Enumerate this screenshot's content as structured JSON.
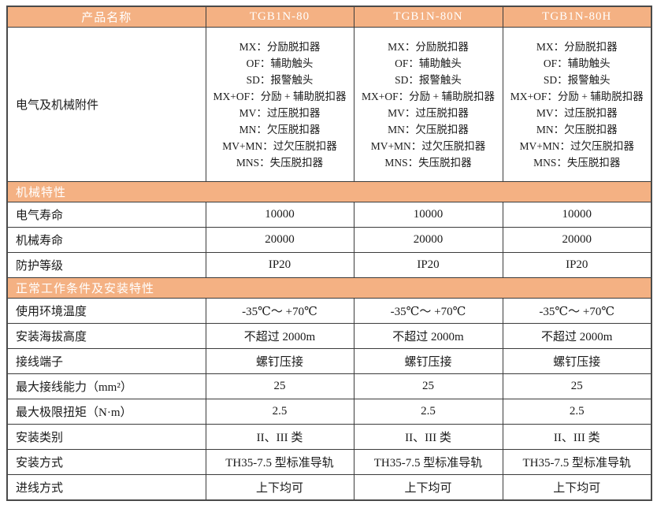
{
  "colors": {
    "header_bg": "#F4B183",
    "header_text": "#FFFFFF",
    "border": "#3B3B3B",
    "outer_border": "#4A4A4A",
    "body_text": "#1A1A1A"
  },
  "table": {
    "header": {
      "product_name_label": "产品名称",
      "models": [
        "TGB1N-80",
        "TGB1N-80N",
        "TGB1N-80H"
      ]
    },
    "accessories": {
      "label": "电气及机械附件",
      "lines": [
        "MX：分励脱扣器",
        "OF：辅助触头",
        "SD：报警触头",
        "MX+OF：分励 + 辅助脱扣器",
        "MV：过压脱扣器",
        "MN：欠压脱扣器",
        "MV+MN：过欠压脱扣器",
        "MNS：失压脱扣器"
      ]
    },
    "sections": [
      {
        "title": "机械特性",
        "rows": [
          {
            "label": "电气寿命",
            "values": [
              "10000",
              "10000",
              "10000"
            ]
          },
          {
            "label": "机械寿命",
            "values": [
              "20000",
              "20000",
              "20000"
            ]
          },
          {
            "label": "防护等级",
            "values": [
              "IP20",
              "IP20",
              "IP20"
            ]
          }
        ]
      },
      {
        "title": "正常工作条件及安装特性",
        "rows": [
          {
            "label": "使用环境温度",
            "values": [
              "-35℃～ +70℃",
              "-35℃～ +70℃",
              "-35℃～ +70℃"
            ]
          },
          {
            "label": "安装海拔高度",
            "values": [
              "不超过 2000m",
              "不超过 2000m",
              "不超过 2000m"
            ]
          },
          {
            "label": "接线端子",
            "values": [
              "螺钉压接",
              "螺钉压接",
              "螺钉压接"
            ]
          },
          {
            "label": "最大接线能力（mm²）",
            "values": [
              "25",
              "25",
              "25"
            ]
          },
          {
            "label": "最大极限扭矩（N·m）",
            "values": [
              "2.5",
              "2.5",
              "2.5"
            ]
          },
          {
            "label": "安装类别",
            "values": [
              "II、III 类",
              "II、III 类",
              "II、III 类"
            ]
          },
          {
            "label": "安装方式",
            "values": [
              "TH35-7.5 型标准导轨",
              "TH35-7.5 型标准导轨",
              "TH35-7.5 型标准导轨"
            ]
          },
          {
            "label": "进线方式",
            "values": [
              "上下均可",
              "上下均可",
              "上下均可"
            ]
          }
        ]
      }
    ]
  }
}
